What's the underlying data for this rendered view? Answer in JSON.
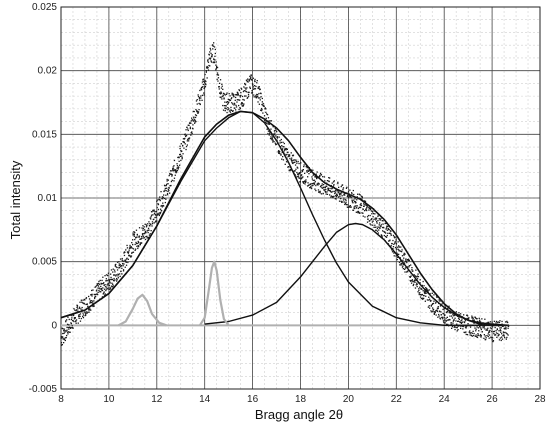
{
  "chart_data": {
    "type": "scatter",
    "title": "",
    "xlabel": "Bragg angle 2θ",
    "ylabel": "Total intensity",
    "xlim": [
      8,
      28
    ],
    "ylim": [
      -0.005,
      0.025
    ],
    "x_ticks": [
      "8",
      "10",
      "12",
      "14",
      "16",
      "18",
      "20",
      "22",
      "24",
      "26",
      "28"
    ],
    "y_ticks": [
      "-0.005",
      "0",
      "0.005",
      "0.01",
      "0.015",
      "0.02",
      "0.025"
    ],
    "grid": true,
    "legend": "none",
    "colors": {
      "points": "#1a1a1a",
      "fit": "#111111",
      "minor_peaks": "#b0b0b0",
      "grid": "#cfcfcf",
      "grid_major": "#444444"
    },
    "series": [
      {
        "kind": "measured_points",
        "x": [
          8.0,
          8.5,
          9.0,
          9.5,
          10.0,
          10.5,
          11.0,
          11.3,
          11.6,
          12.0,
          12.5,
          13.0,
          13.5,
          14.0,
          14.2,
          14.4,
          14.6,
          14.8,
          15.0,
          15.3,
          15.6,
          15.9,
          16.2,
          16.6,
          17.0,
          17.5,
          18.0,
          18.5,
          19.0,
          19.5,
          20.0,
          20.5,
          21.0,
          21.5,
          22.0,
          22.5,
          23.0,
          23.5,
          24.0,
          24.5,
          25.0,
          25.5,
          26.0,
          26.5,
          26.7
        ],
        "y": [
          -0.001,
          0.0005,
          0.0015,
          0.0025,
          0.0035,
          0.0045,
          0.0065,
          0.007,
          0.0075,
          0.009,
          0.011,
          0.0135,
          0.016,
          0.019,
          0.021,
          0.0215,
          0.019,
          0.0175,
          0.0175,
          0.0175,
          0.018,
          0.019,
          0.0185,
          0.016,
          0.0145,
          0.013,
          0.012,
          0.0115,
          0.011,
          0.0105,
          0.01,
          0.0095,
          0.0085,
          0.0075,
          0.006,
          0.0045,
          0.003,
          0.0018,
          0.001,
          0.0003,
          0.0,
          -0.0002,
          -0.0005,
          -0.0004,
          -0.0003
        ]
      },
      {
        "kind": "fit_total",
        "x": [
          8.0,
          9.0,
          10.0,
          11.0,
          12.0,
          13.0,
          14.0,
          14.5,
          15.0,
          15.5,
          16.0,
          16.5,
          17.0,
          17.5,
          18.0,
          18.5,
          19.0,
          19.5,
          20.0,
          20.5,
          21.0,
          21.5,
          22.0,
          22.5,
          23.0,
          23.5,
          24.0,
          24.5,
          25.0,
          25.5,
          26.0,
          26.7
        ],
        "y": [
          0.0006,
          0.0012,
          0.0025,
          0.0047,
          0.0078,
          0.0115,
          0.0148,
          0.0158,
          0.0165,
          0.0168,
          0.0167,
          0.0162,
          0.0155,
          0.0145,
          0.0132,
          0.012,
          0.0112,
          0.0107,
          0.0103,
          0.0099,
          0.0092,
          0.0083,
          0.0071,
          0.0056,
          0.0041,
          0.0028,
          0.0017,
          0.0009,
          0.0004,
          0.0001,
          0.0,
          0.0
        ]
      },
      {
        "kind": "fit_peak_1",
        "x": [
          8.0,
          9.0,
          10.0,
          11.0,
          12.0,
          13.0,
          14.0,
          14.5,
          15.0,
          15.5,
          16.0,
          16.5,
          17.0,
          17.5,
          18.0,
          18.5,
          19.0,
          19.5,
          20.0,
          21.0,
          22.0,
          23.0,
          24.0,
          25.0,
          26.0,
          26.7
        ],
        "y": [
          0.0006,
          0.0012,
          0.0025,
          0.0047,
          0.0078,
          0.0113,
          0.0145,
          0.0155,
          0.0163,
          0.0168,
          0.0167,
          0.0159,
          0.0145,
          0.0128,
          0.0108,
          0.0087,
          0.0067,
          0.0049,
          0.0034,
          0.0015,
          0.0006,
          0.0002,
          0.0,
          0.0,
          0.0,
          0.0
        ]
      },
      {
        "kind": "fit_peak_2",
        "x": [
          14.0,
          15.0,
          16.0,
          17.0,
          18.0,
          18.5,
          19.0,
          19.5,
          20.0,
          20.3,
          20.6,
          21.0,
          21.5,
          22.0,
          22.5,
          23.0,
          23.5,
          24.0,
          24.5,
          25.0,
          25.5,
          26.0,
          26.7
        ],
        "y": [
          0.0001,
          0.0003,
          0.0008,
          0.0018,
          0.0038,
          0.005,
          0.0062,
          0.0073,
          0.0079,
          0.008,
          0.0079,
          0.0075,
          0.0067,
          0.0056,
          0.0044,
          0.0032,
          0.0022,
          0.0014,
          0.0008,
          0.0004,
          0.0002,
          0.0001,
          0.0
        ]
      },
      {
        "kind": "minor_peak_a",
        "x": [
          10.4,
          10.7,
          11.0,
          11.2,
          11.4,
          11.6,
          11.8,
          12.1,
          12.4
        ],
        "y": [
          0.0,
          0.0003,
          0.0013,
          0.0021,
          0.0024,
          0.0019,
          0.0009,
          0.0002,
          0.0
        ]
      },
      {
        "kind": "minor_peak_b",
        "x": [
          13.8,
          14.0,
          14.15,
          14.3,
          14.4,
          14.5,
          14.65,
          14.8,
          15.0
        ],
        "y": [
          0.0,
          0.0006,
          0.0025,
          0.0045,
          0.005,
          0.0043,
          0.002,
          0.0005,
          0.0
        ]
      }
    ]
  }
}
